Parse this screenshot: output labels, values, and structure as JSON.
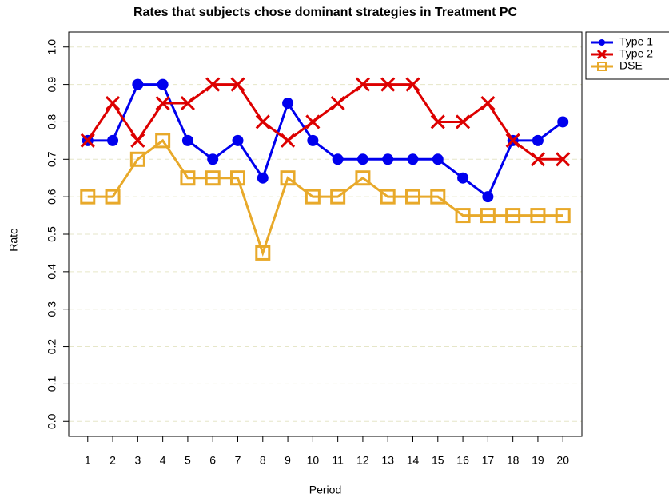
{
  "chart_data": {
    "type": "line",
    "title": "Rates that subjects chose dominant strategies in Treatment PC",
    "xlabel": "Period",
    "ylabel": "Rate",
    "x": [
      1,
      2,
      3,
      4,
      5,
      6,
      7,
      8,
      9,
      10,
      11,
      12,
      13,
      14,
      15,
      16,
      17,
      18,
      19,
      20
    ],
    "series": [
      {
        "name": "Type 1",
        "color": "#0000ee",
        "marker": "circle",
        "values": [
          0.75,
          0.75,
          0.9,
          0.9,
          0.75,
          0.7,
          0.75,
          0.65,
          0.85,
          0.75,
          0.7,
          0.7,
          0.7,
          0.7,
          0.7,
          0.65,
          0.6,
          0.75,
          0.75,
          0.8
        ]
      },
      {
        "name": "Type 2",
        "color": "#dd0000",
        "marker": "x",
        "values": [
          0.75,
          0.85,
          0.75,
          0.85,
          0.85,
          0.9,
          0.9,
          0.8,
          0.75,
          0.8,
          0.85,
          0.9,
          0.9,
          0.9,
          0.8,
          0.8,
          0.85,
          0.75,
          0.7,
          0.7
        ]
      },
      {
        "name": "DSE",
        "color": "#e8a92a",
        "marker": "square",
        "values": [
          0.6,
          0.6,
          0.7,
          0.75,
          0.65,
          0.65,
          0.65,
          0.45,
          0.65,
          0.6,
          0.6,
          0.65,
          0.6,
          0.6,
          0.6,
          0.55,
          0.55,
          0.55,
          0.55,
          0.55
        ]
      }
    ],
    "xlim": [
      0.24,
      20.76
    ],
    "ylim": [
      -0.04,
      1.04
    ],
    "xticks": [
      1,
      2,
      3,
      4,
      5,
      6,
      7,
      8,
      9,
      10,
      11,
      12,
      13,
      14,
      15,
      16,
      17,
      18,
      19,
      20
    ],
    "yticks": [
      {
        "value": 0,
        "label": "0.0"
      },
      0.1,
      0.2,
      0.3,
      0.4,
      0.5,
      0.6,
      0.7,
      0.8,
      0.9,
      {
        "value": 1,
        "label": "1.0"
      }
    ],
    "grid": true,
    "legend": "top-right"
  }
}
